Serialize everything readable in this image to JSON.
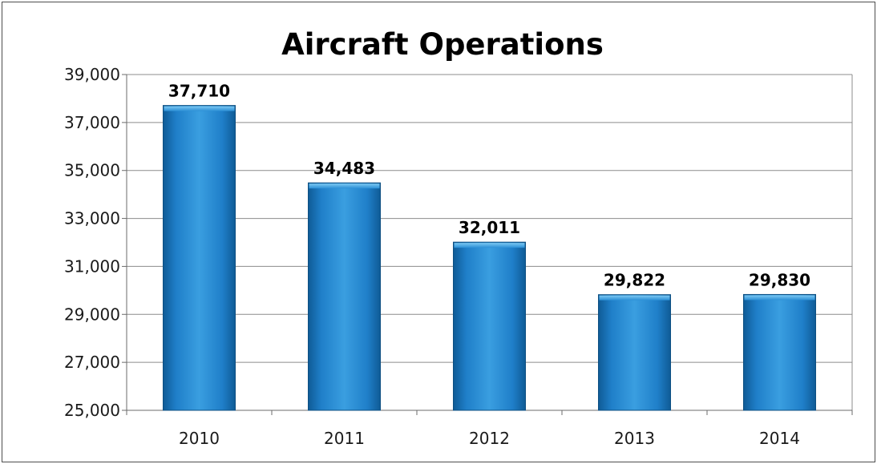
{
  "chart_data": {
    "type": "bar",
    "title": "Aircraft Operations",
    "xlabel": "",
    "ylabel": "",
    "categories": [
      "2010",
      "2011",
      "2012",
      "2013",
      "2014"
    ],
    "values": [
      37710,
      34483,
      32011,
      29822,
      29830
    ],
    "value_labels": [
      "37,710",
      "34,483",
      "32,011",
      "29,822",
      "29,830"
    ],
    "ylim": [
      25000,
      39000
    ],
    "yticks": [
      25000,
      27000,
      29000,
      31000,
      33000,
      35000,
      37000,
      39000
    ],
    "ytick_labels": [
      "25,000",
      "27,000",
      "29,000",
      "31,000",
      "33,000",
      "35,000",
      "37,000",
      "39,000"
    ],
    "grid": true,
    "legend": "none",
    "colors": {
      "bar": "#1f7fc9",
      "bar_light": "#4fb0ea",
      "bar_dark": "#0f5b96",
      "grid": "#8c8c8c"
    }
  }
}
